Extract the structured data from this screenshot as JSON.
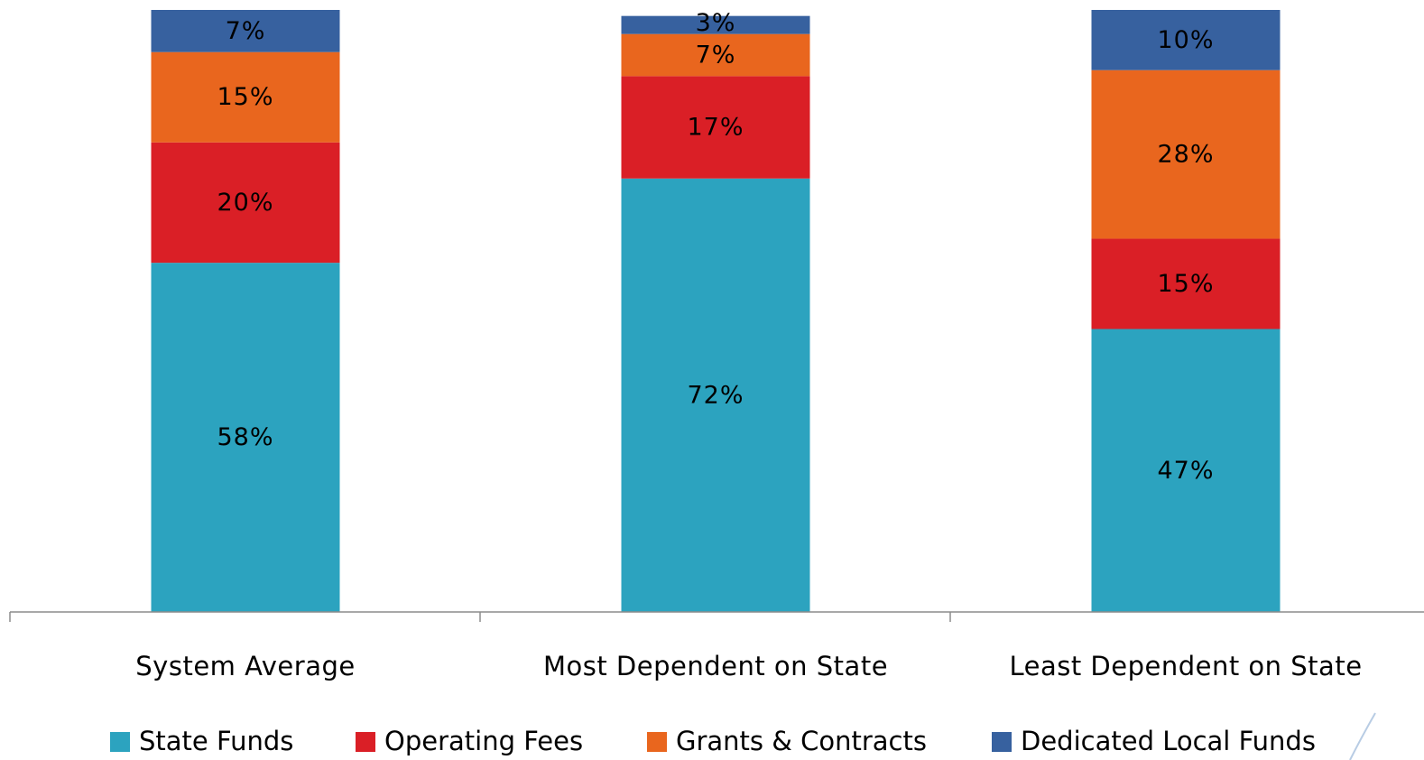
{
  "chart_data": {
    "type": "bar",
    "stacked": true,
    "categories": [
      "System Average",
      "Most Dependent on State",
      "Least Dependent on State"
    ],
    "series": [
      {
        "name": "State Funds",
        "values": [
          58,
          72,
          47
        ],
        "labels": [
          "58%",
          "72%",
          "47%"
        ],
        "color": "#2CA3BF"
      },
      {
        "name": "Operating Fees",
        "values": [
          20,
          17,
          15
        ],
        "labels": [
          "20%",
          "17%",
          "15%"
        ],
        "color": "#DA1F26"
      },
      {
        "name": "Grants & Contracts",
        "values": [
          15,
          7,
          28
        ],
        "labels": [
          "15%",
          "7%",
          "28%"
        ],
        "color": "#E9661E"
      },
      {
        "name": "Dedicated Local Funds",
        "values": [
          7,
          3,
          10
        ],
        "labels": [
          "7%",
          "3%",
          "10%"
        ],
        "color": "#37619F"
      }
    ],
    "ylim": [
      0,
      100
    ],
    "grid": false,
    "legend_position": "bottom"
  }
}
